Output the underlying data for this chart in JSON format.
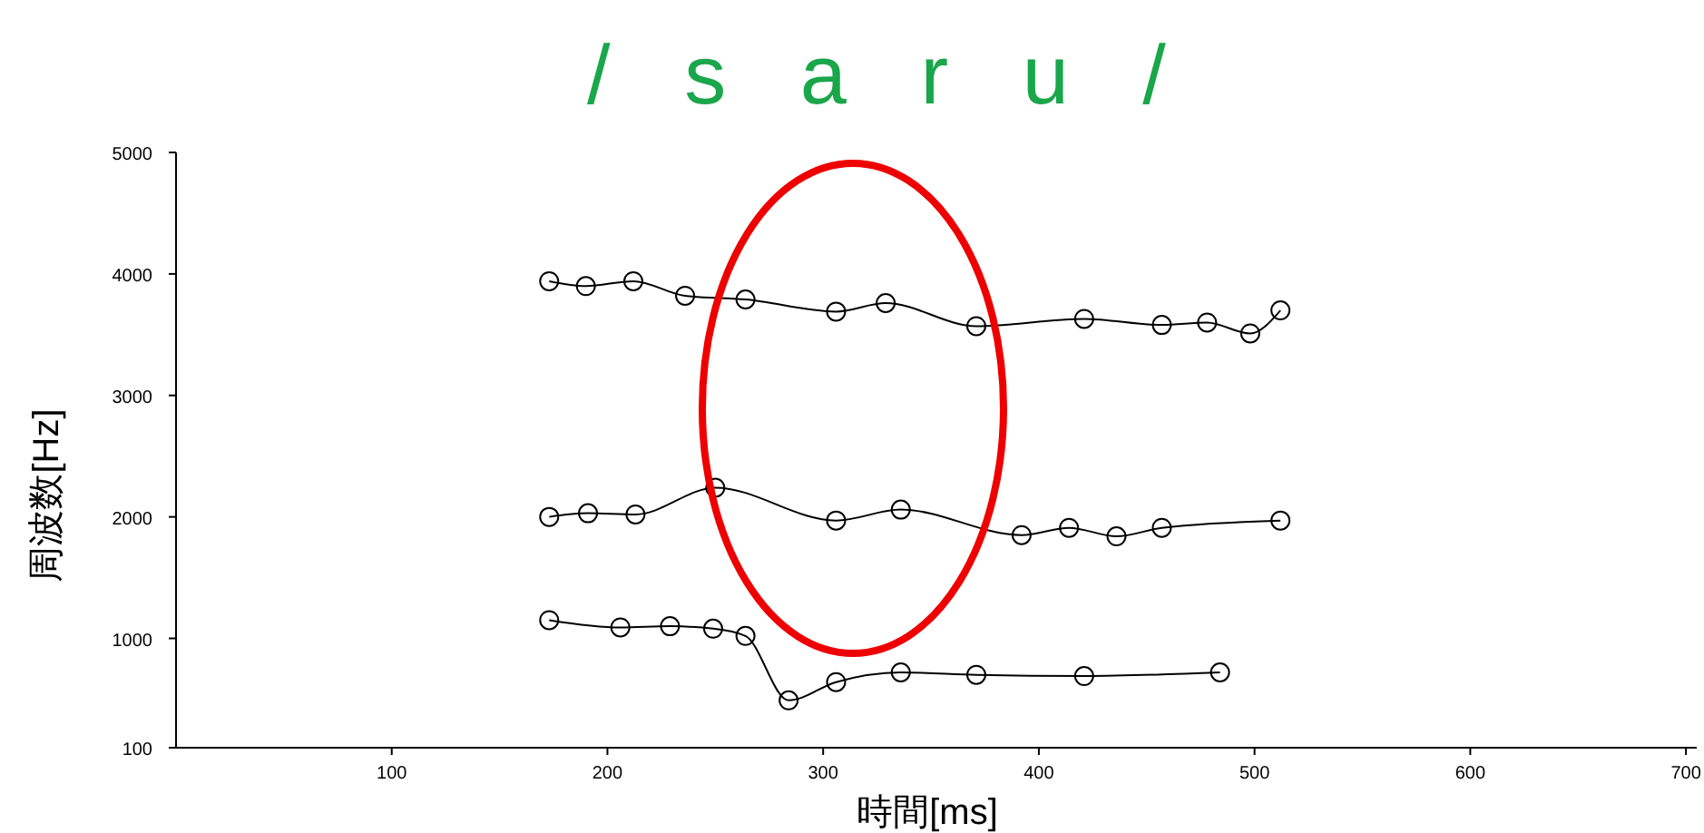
{
  "chart_data": {
    "type": "line",
    "title": "/ s a r u /",
    "xlabel": "時間[ms]",
    "ylabel": "周波数[Hz]",
    "xlim": [
      0,
      705
    ],
    "ylim": [
      100,
      5000
    ],
    "xticks": [
      100,
      200,
      300,
      400,
      500,
      600,
      700
    ],
    "yticks": [
      100,
      1000,
      2000,
      3000,
      4000,
      5000
    ],
    "grid": false,
    "marker": "circle",
    "line_style": "solid",
    "series": [
      {
        "color": "#000000",
        "x": [
          173,
          190,
          212,
          236,
          264,
          306,
          329,
          371,
          421,
          457,
          478,
          498,
          512
        ],
        "values": [
          3940,
          3900,
          3940,
          3820,
          3790,
          3690,
          3760,
          3570,
          3630,
          3580,
          3600,
          3510,
          3700
        ]
      },
      {
        "color": "#000000",
        "x": [
          173,
          191,
          213,
          250,
          306,
          336,
          392,
          414,
          436,
          457,
          512
        ],
        "values": [
          2000,
          2030,
          2020,
          2240,
          1970,
          2060,
          1850,
          1910,
          1840,
          1910,
          1970
        ]
      },
      {
        "color": "#000000",
        "x": [
          173,
          206,
          229,
          249,
          264,
          284,
          306,
          336,
          371,
          421,
          484
        ],
        "values": [
          1150,
          1090,
          1100,
          1080,
          1020,
          490,
          640,
          720,
          700,
          690,
          720
        ]
      }
    ]
  }
}
